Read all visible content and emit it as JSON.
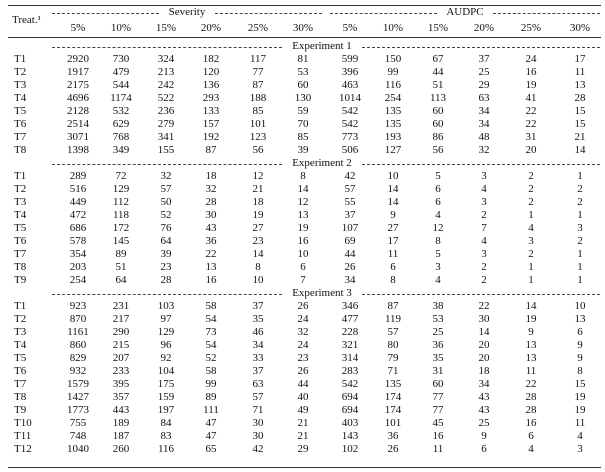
{
  "header": {
    "treat": "Treat.¹",
    "groups": [
      "Severity",
      "AUDPC"
    ],
    "columns": [
      "5%",
      "10%",
      "15%",
      "20%",
      "25%",
      "30%",
      "5%",
      "10%",
      "15%",
      "20%",
      "25%",
      "30%"
    ]
  },
  "sections": [
    {
      "title": "Experiment 1",
      "rows": [
        [
          "T1",
          2920,
          730,
          324,
          182,
          117,
          81,
          599,
          150,
          67,
          37,
          24,
          17
        ],
        [
          "T2",
          1917,
          479,
          213,
          120,
          77,
          53,
          396,
          99,
          44,
          25,
          16,
          11
        ],
        [
          "T3",
          2175,
          544,
          242,
          136,
          87,
          60,
          463,
          116,
          51,
          29,
          19,
          13
        ],
        [
          "T4",
          4696,
          1174,
          522,
          293,
          188,
          130,
          1014,
          254,
          113,
          63,
          41,
          28
        ],
        [
          "T5",
          2128,
          532,
          236,
          133,
          85,
          59,
          542,
          135,
          60,
          34,
          22,
          15
        ],
        [
          "T6",
          2514,
          629,
          279,
          157,
          101,
          70,
          542,
          135,
          60,
          34,
          22,
          15
        ],
        [
          "T7",
          3071,
          768,
          341,
          192,
          123,
          85,
          773,
          193,
          86,
          48,
          31,
          21
        ],
        [
          "T8",
          1398,
          349,
          155,
          87,
          56,
          39,
          506,
          127,
          56,
          32,
          20,
          14
        ]
      ]
    },
    {
      "title": "Experiment 2",
      "rows": [
        [
          "T1",
          289,
          72,
          32,
          18,
          12,
          8,
          42,
          10,
          5,
          3,
          2,
          1
        ],
        [
          "T2",
          516,
          129,
          57,
          32,
          21,
          14,
          57,
          14,
          6,
          4,
          2,
          2
        ],
        [
          "T3",
          449,
          112,
          50,
          28,
          18,
          12,
          55,
          14,
          6,
          3,
          2,
          2
        ],
        [
          "T4",
          472,
          118,
          52,
          30,
          19,
          13,
          37,
          9,
          4,
          2,
          1,
          1
        ],
        [
          "T5",
          686,
          172,
          76,
          43,
          27,
          19,
          107,
          27,
          12,
          7,
          4,
          3
        ],
        [
          "T6",
          578,
          145,
          64,
          36,
          23,
          16,
          69,
          17,
          8,
          4,
          3,
          2
        ],
        [
          "T7",
          354,
          89,
          39,
          22,
          14,
          10,
          44,
          11,
          5,
          3,
          2,
          1
        ],
        [
          "T8",
          203,
          51,
          23,
          13,
          8,
          6,
          26,
          6,
          3,
          2,
          1,
          1
        ],
        [
          "T9",
          254,
          64,
          28,
          16,
          10,
          7,
          34,
          8,
          4,
          2,
          1,
          1
        ]
      ]
    },
    {
      "title": "Experiment 3",
      "rows": [
        [
          "T1",
          923,
          231,
          103,
          58,
          37,
          26,
          346,
          87,
          38,
          22,
          14,
          10
        ],
        [
          "T2",
          870,
          217,
          97,
          54,
          35,
          24,
          477,
          119,
          53,
          30,
          19,
          13
        ],
        [
          "T3",
          1161,
          290,
          129,
          73,
          46,
          32,
          228,
          57,
          25,
          14,
          9,
          6
        ],
        [
          "T4",
          860,
          215,
          96,
          54,
          34,
          24,
          321,
          80,
          36,
          20,
          13,
          9
        ],
        [
          "T5",
          829,
          207,
          92,
          52,
          33,
          23,
          314,
          79,
          35,
          20,
          13,
          9
        ],
        [
          "T6",
          932,
          233,
          104,
          58,
          37,
          26,
          283,
          71,
          31,
          18,
          11,
          8
        ],
        [
          "T7",
          1579,
          395,
          175,
          99,
          63,
          44,
          542,
          135,
          60,
          34,
          22,
          15
        ],
        [
          "T8",
          1427,
          357,
          159,
          89,
          57,
          40,
          694,
          174,
          77,
          43,
          28,
          19
        ],
        [
          "T9",
          1773,
          443,
          197,
          111,
          71,
          49,
          694,
          174,
          77,
          43,
          28,
          19
        ],
        [
          "T10",
          755,
          189,
          84,
          47,
          30,
          21,
          403,
          101,
          45,
          25,
          16,
          11
        ],
        [
          "T11",
          748,
          187,
          83,
          47,
          30,
          21,
          143,
          36,
          16,
          9,
          6,
          4
        ],
        [
          "T12",
          1040,
          260,
          116,
          65,
          42,
          29,
          102,
          26,
          11,
          6,
          4,
          3
        ]
      ]
    }
  ]
}
